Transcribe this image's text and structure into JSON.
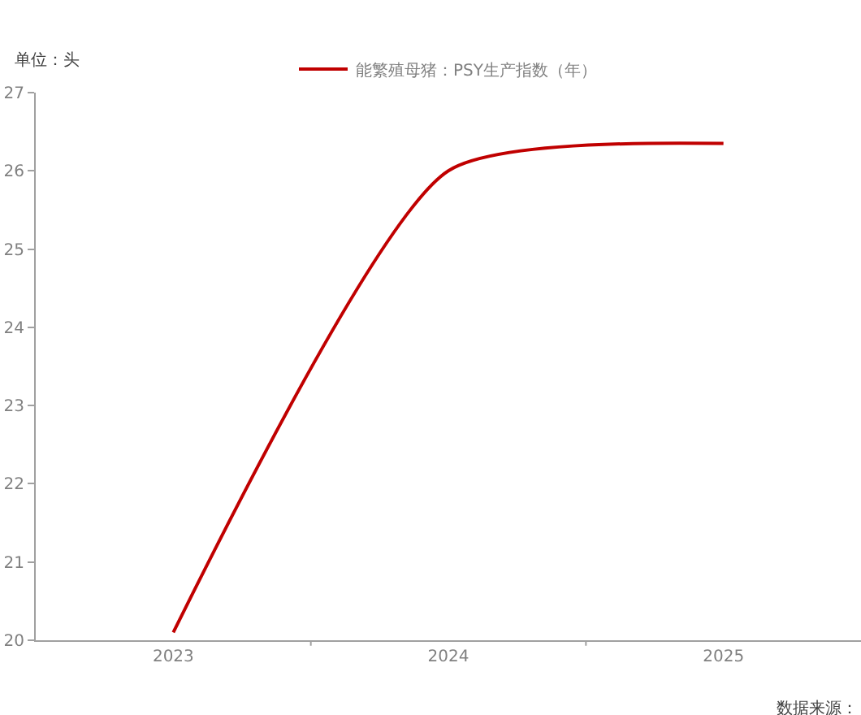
{
  "chart_data": {
    "type": "line",
    "categories": [
      "2023",
      "2024",
      "2025"
    ],
    "series": [
      {
        "name": "能繁殖母猪：PSY生产指数（年）",
        "color": "#c00000",
        "values": [
          20.1,
          26.0,
          26.35
        ]
      }
    ],
    "ylim": [
      20,
      27
    ],
    "yticks": [
      20,
      21,
      22,
      23,
      24,
      25,
      26,
      27
    ],
    "legend": "top",
    "marker": "none",
    "line_style": "solid",
    "annotations": [
      "单位：头",
      "数据来源："
    ]
  }
}
